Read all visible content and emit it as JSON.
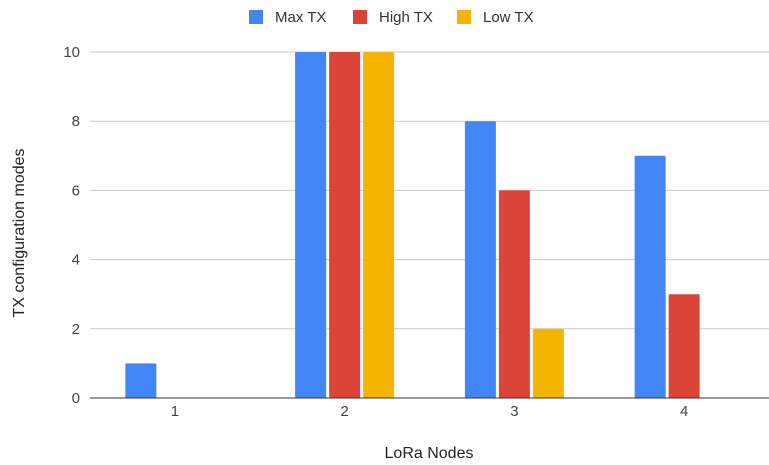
{
  "chart_data": {
    "type": "bar",
    "title": "",
    "xlabel": "LoRa Nodes",
    "ylabel": "TX configuration modes",
    "categories": [
      "1",
      "2",
      "3",
      "4"
    ],
    "series": [
      {
        "name": "Max TX",
        "color": "#4285f4",
        "values": [
          1,
          10,
          8,
          7
        ]
      },
      {
        "name": "High TX",
        "color": "#db4437",
        "values": [
          0,
          10,
          6,
          3
        ]
      },
      {
        "name": "Low TX",
        "color": "#f4b400",
        "values": [
          0,
          10,
          2,
          0
        ]
      }
    ],
    "ylim": [
      0,
      10
    ],
    "yticks": [
      "0",
      "2",
      "4",
      "6",
      "8",
      "10"
    ],
    "grid": true,
    "legend_position": "top-center"
  }
}
